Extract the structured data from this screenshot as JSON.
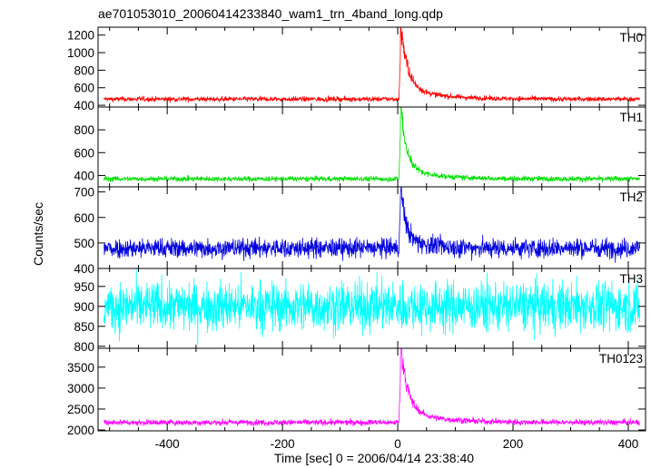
{
  "chart_data": {
    "type": "line",
    "title": "ae701053010_20060414233840_wam1_trn_4band_long.qdp",
    "xlabel": "Time [sec] 0 = 2006/04/14 23:38:40",
    "ylabel": "Counts/sec",
    "xlim": [
      -520,
      430
    ],
    "xticks": [
      -400,
      -200,
      0,
      200,
      400
    ],
    "grid": false,
    "time_range": [
      -510,
      420
    ],
    "peak_time": 5,
    "panels": [
      {
        "name": "TH0",
        "color": "#ff0000",
        "ylim": [
          380,
          1290
        ],
        "yticks": [
          400,
          600,
          800,
          1000,
          1200
        ],
        "baseline": 470,
        "noise": 22,
        "peak": 1260,
        "decay_sec": 12
      },
      {
        "name": "TH1",
        "color": "#00e000",
        "ylim": [
          300,
          1000
        ],
        "yticks": [
          400,
          600,
          800
        ],
        "baseline": 370,
        "noise": 18,
        "peak": 980,
        "decay_sec": 10
      },
      {
        "name": "TH2",
        "color": "#0000dd",
        "ylim": [
          400,
          720
        ],
        "yticks": [
          400,
          500,
          600,
          700
        ],
        "baseline": 480,
        "noise": 30,
        "peak": 720,
        "decay_sec": 8
      },
      {
        "name": "TH3",
        "color": "#00ffff",
        "ylim": [
          795,
          995
        ],
        "yticks": [
          800,
          850,
          900,
          950
        ],
        "baseline": 900,
        "noise": 48,
        "peak": 900,
        "decay_sec": 0
      },
      {
        "name": "TH0123",
        "color": "#ff00ff",
        "ylim": [
          1980,
          3950
        ],
        "yticks": [
          2000,
          2500,
          3000,
          3500
        ],
        "baseline": 2180,
        "noise": 55,
        "peak": 3900,
        "decay_sec": 12
      }
    ]
  }
}
